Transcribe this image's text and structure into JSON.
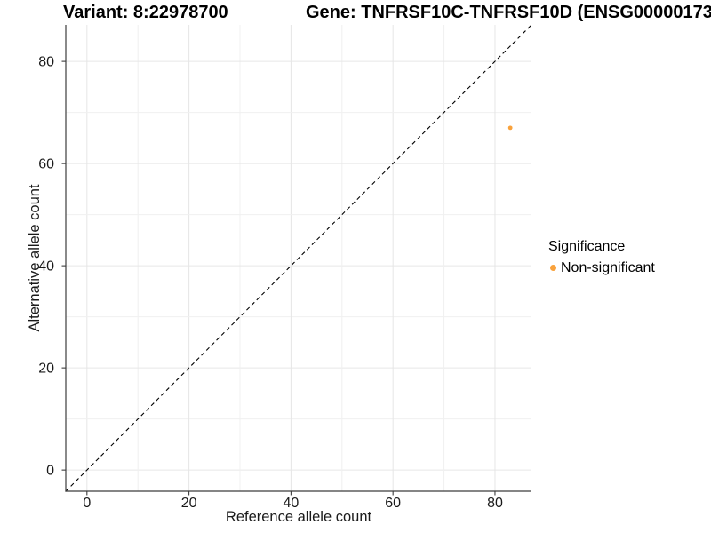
{
  "chart_data": {
    "type": "scatter",
    "title_left": "Variant: 8:22978700",
    "title_right": "Gene: TNFRSF10C-TNFRSF10D (ENSG00000173",
    "xlabel": "Reference allele count",
    "ylabel": "Alternative allele count",
    "xlim": [
      -4.15,
      87.15
    ],
    "ylim": [
      -4.15,
      87.15
    ],
    "xticks": [
      0,
      20,
      40,
      60,
      80
    ],
    "yticks": [
      0,
      20,
      40,
      60,
      80
    ],
    "grid": true,
    "minor_grid_step": 10,
    "identity_line": {
      "style": "dashed",
      "slope": 1,
      "intercept": 0,
      "color": "#000000"
    },
    "series": [
      {
        "name": "Non-significant",
        "color": "#F9A23C",
        "points": [
          {
            "x": 83,
            "y": 67
          }
        ]
      }
    ],
    "legend": {
      "title": "Significance",
      "position": "right",
      "items": [
        {
          "label": "Non-significant",
          "color": "#F9A23C"
        }
      ]
    },
    "colors": {
      "background": "#FFFFFF",
      "grid_major": "#E6E6E6",
      "grid_minor": "#F0F0F0",
      "axis_line": "#3C3C3C",
      "text": "#1A1A1A"
    }
  }
}
